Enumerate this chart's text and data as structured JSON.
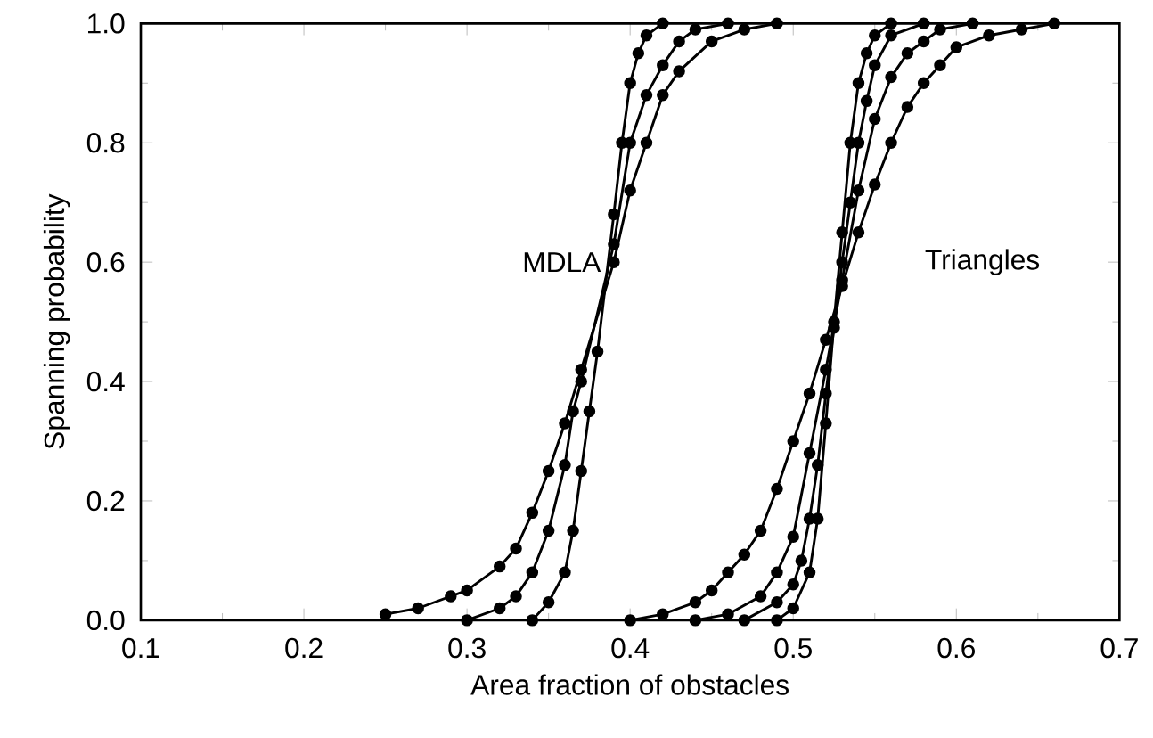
{
  "chart_data": {
    "type": "line",
    "xlabel": "Area fraction of obstacles",
    "ylabel": "Spanning probability",
    "xlim": [
      0.1,
      0.7
    ],
    "ylim": [
      0,
      1
    ],
    "xticks": [
      0.1,
      0.2,
      0.3,
      0.4,
      0.5,
      0.6,
      0.7
    ],
    "yticks": [
      {
        "value": 0,
        "label": "0.0"
      },
      0.2,
      0.4,
      0.6,
      0.8,
      {
        "value": 1,
        "label": "1.0"
      }
    ],
    "marker": "circle",
    "annotations": [
      "MDLA",
      "Triangles"
    ],
    "series": [
      {
        "color": "#000000",
        "x": [
          0.25,
          0.27,
          0.29,
          0.3,
          0.32,
          0.33,
          0.34,
          0.35,
          0.36,
          0.37,
          0.38,
          0.385,
          0.39,
          0.4,
          0.41,
          0.42,
          0.43,
          0.45,
          0.47,
          0.49
        ],
        "values": [
          0.01,
          0.02,
          0.04,
          0.05,
          0.09,
          0.12,
          0.18,
          0.25,
          0.33,
          0.42,
          null,
          null,
          0.6,
          0.72,
          0.8,
          0.88,
          0.92,
          0.97,
          0.99,
          1.0
        ]
      },
      {
        "color": "#000000",
        "x": [
          0.3,
          0.32,
          0.33,
          0.34,
          0.35,
          0.36,
          0.365,
          0.37,
          0.38,
          0.39,
          0.4,
          0.41,
          0.42,
          0.43,
          0.44,
          0.46
        ],
        "values": [
          0.0,
          0.02,
          0.04,
          0.08,
          0.15,
          0.26,
          0.35,
          0.4,
          null,
          0.63,
          0.8,
          0.88,
          0.93,
          0.97,
          0.99,
          1.0
        ]
      },
      {
        "color": "#000000",
        "x": [
          0.34,
          0.35,
          0.36,
          0.365,
          0.37,
          0.375,
          0.38,
          0.385,
          0.39,
          0.395,
          0.4,
          0.405,
          0.41,
          0.42
        ],
        "values": [
          0.0,
          0.03,
          0.08,
          0.15,
          0.25,
          0.35,
          0.45,
          null,
          0.68,
          0.8,
          0.9,
          0.95,
          0.98,
          1.0
        ]
      },
      {
        "color": "#000000",
        "x": [
          0.4,
          0.42,
          0.44,
          0.45,
          0.46,
          0.47,
          0.48,
          0.49,
          0.5,
          0.51,
          0.52,
          0.53,
          0.54,
          0.55,
          0.56,
          0.57,
          0.58,
          0.59,
          0.6,
          0.62,
          0.64,
          0.66
        ],
        "values": [
          0.0,
          0.01,
          0.03,
          0.05,
          0.08,
          0.11,
          0.15,
          0.22,
          0.3,
          0.38,
          0.47,
          0.56,
          0.65,
          0.73,
          0.8,
          0.86,
          0.9,
          0.93,
          0.96,
          0.98,
          0.99,
          1.0
        ]
      },
      {
        "color": "#000000",
        "x": [
          0.44,
          0.46,
          0.48,
          0.49,
          0.5,
          0.51,
          0.52,
          0.53,
          0.54,
          0.55,
          0.56,
          0.57,
          0.58,
          0.59,
          0.61
        ],
        "values": [
          0.0,
          0.01,
          0.04,
          0.08,
          0.14,
          0.28,
          0.42,
          0.57,
          0.72,
          0.84,
          0.91,
          0.95,
          0.97,
          0.99,
          1.0
        ]
      },
      {
        "color": "#000000",
        "x": [
          0.47,
          0.49,
          0.5,
          0.505,
          0.51,
          0.515,
          0.52,
          0.525,
          0.53,
          0.535,
          0.54,
          0.545,
          0.55,
          0.56,
          0.58
        ],
        "values": [
          0.0,
          0.03,
          0.06,
          0.1,
          0.17,
          0.26,
          0.38,
          0.49,
          0.6,
          0.7,
          0.8,
          0.87,
          0.93,
          0.98,
          1.0
        ]
      },
      {
        "color": "#000000",
        "x": [
          0.49,
          0.5,
          0.51,
          0.515,
          0.52,
          0.525,
          0.53,
          0.535,
          0.54,
          0.545,
          0.55,
          0.56
        ],
        "values": [
          0.0,
          0.02,
          0.08,
          0.17,
          0.33,
          0.5,
          0.65,
          0.8,
          0.9,
          0.95,
          0.98,
          1.0
        ]
      }
    ]
  }
}
